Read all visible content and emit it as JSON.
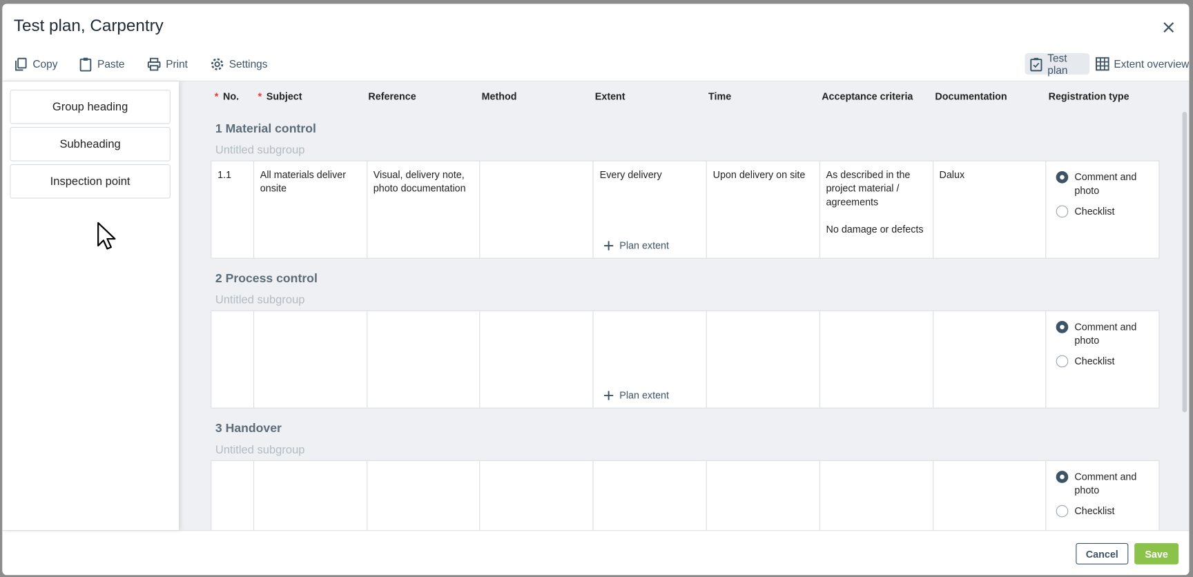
{
  "title": "Test plan, Carpentry",
  "toolbar": {
    "copy": "Copy",
    "paste": "Paste",
    "print": "Print",
    "settings": "Settings",
    "test_plan": "Test plan",
    "extent_overview": "Extent overview"
  },
  "sidebar": {
    "items": [
      "Group heading",
      "Subheading",
      "Inspection point"
    ]
  },
  "columns": [
    "No.",
    "Subject",
    "Reference",
    "Method",
    "Extent",
    "Time",
    "Acceptance criteria",
    "Documentation",
    "Registration type"
  ],
  "groups": [
    {
      "title": "1 Material control",
      "subgroup": "Untitled subgroup",
      "row": {
        "no": "1.1",
        "subject": "All materials deliver onsite",
        "reference": "Visual, delivery note, photo documentation",
        "method": "",
        "extent": "Every delivery",
        "time": "Upon delivery on site",
        "acceptance": "As described in the project material / agreements\n\nNo damage or defects",
        "documentation": "Dalux"
      }
    },
    {
      "title": "2 Process control",
      "subgroup": "Untitled subgroup",
      "row": {
        "no": "",
        "subject": "",
        "reference": "",
        "method": "",
        "extent": "",
        "time": "",
        "acceptance": "",
        "documentation": ""
      }
    },
    {
      "title": "3 Handover",
      "subgroup": "Untitled subgroup",
      "row": {
        "no": "",
        "subject": "",
        "reference": "",
        "method": "",
        "extent": "",
        "time": "",
        "acceptance": "",
        "documentation": ""
      }
    }
  ],
  "plan_extent": "Plan extent",
  "registration_options": [
    "Comment and photo",
    "Checklist"
  ],
  "registration_selected": "Comment and photo",
  "footer": {
    "cancel": "Cancel",
    "save": "Save"
  },
  "colors": {
    "accent": "#3d5366",
    "save": "#8bc34a",
    "required": "#e53935"
  }
}
